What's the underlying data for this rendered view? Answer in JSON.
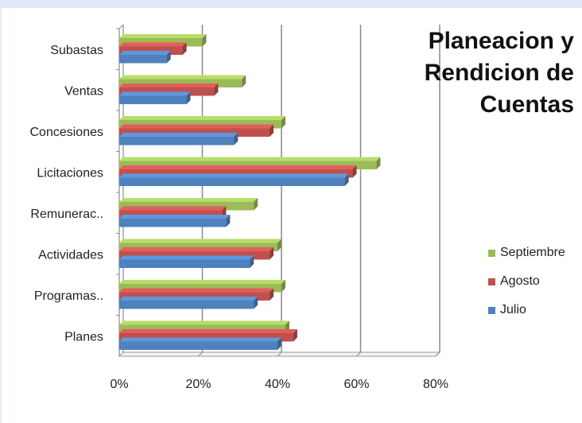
{
  "chart_data": {
    "type": "bar",
    "orientation": "horizontal",
    "title": "Planeacion y Rendicion de Cuentas",
    "categories": [
      "Subastas",
      "Ventas",
      "Concesiones",
      "Licitaciones",
      "Remunerac..",
      "Actividades",
      "Programas..",
      "Planes"
    ],
    "series": [
      {
        "name": "Septiembre",
        "color": "#9bbb59",
        "values": [
          21,
          31,
          41,
          65,
          34,
          40,
          41,
          42
        ]
      },
      {
        "name": "Agosto",
        "color": "#c0504d",
        "values": [
          16,
          24,
          38,
          59,
          26,
          38,
          38,
          44
        ]
      },
      {
        "name": "Julio",
        "color": "#4f81bd",
        "values": [
          12,
          17,
          29,
          57,
          27,
          33,
          34,
          40
        ]
      }
    ],
    "xlim": [
      0,
      80
    ],
    "ticks": [
      "0%",
      "20%",
      "40%",
      "60%",
      "80%"
    ],
    "grid": true,
    "legend_position": "right"
  }
}
